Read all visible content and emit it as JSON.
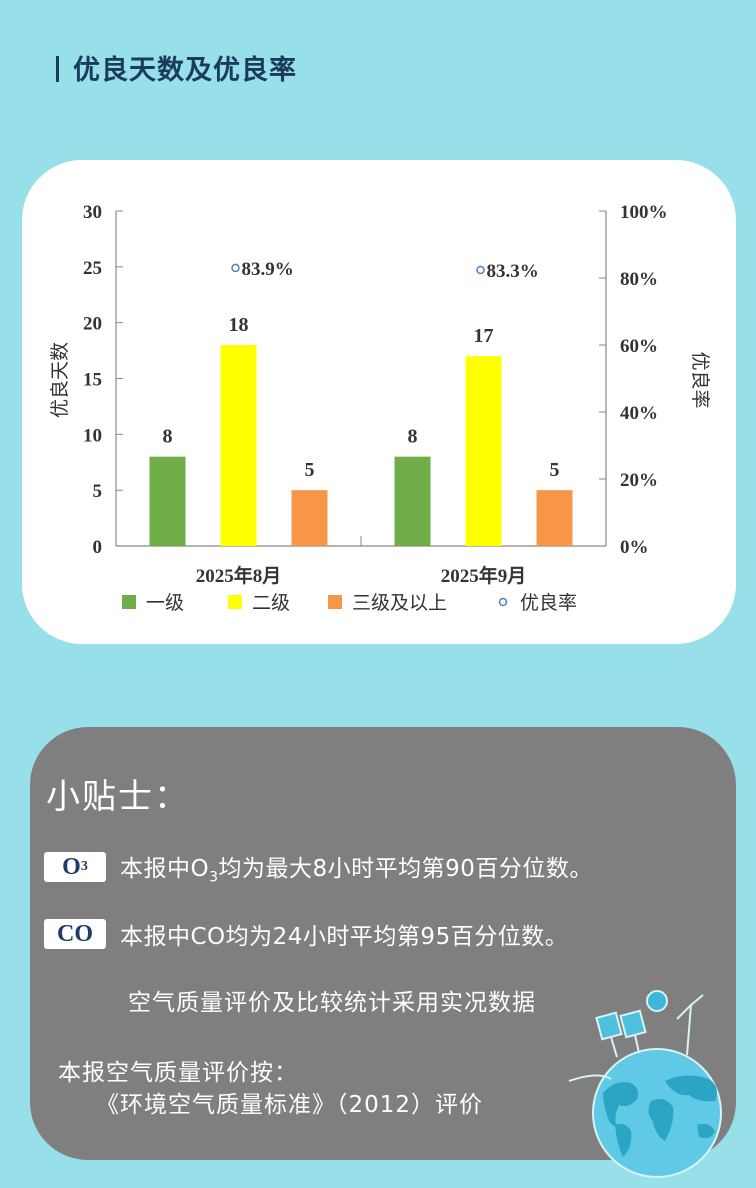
{
  "section": {
    "title": "优良天数及优良率"
  },
  "chart_data": {
    "type": "bar",
    "title": "优良天数及优良率",
    "categories": [
      "2025年8月",
      "2025年9月"
    ],
    "series": [
      {
        "name": "一级",
        "type": "bar",
        "axis": "left",
        "color": "#70ad47",
        "values": [
          8,
          8
        ]
      },
      {
        "name": "二级",
        "type": "bar",
        "axis": "left",
        "color": "#ffff00",
        "values": [
          18,
          17
        ]
      },
      {
        "name": "三级及以上",
        "type": "bar",
        "axis": "left",
        "color": "#f79646",
        "values": [
          5,
          5
        ]
      },
      {
        "name": "优良率",
        "type": "scatter",
        "axis": "right",
        "color": "#4f81bd",
        "values": [
          83.9,
          83.3
        ],
        "labels": [
          "83.9%",
          "83.3%"
        ]
      }
    ],
    "ylabel": "优良天数",
    "y2label": "优良率",
    "ylim": [
      0,
      30
    ],
    "yticks": [
      "0",
      "5",
      "10",
      "15",
      "20",
      "25",
      "30"
    ],
    "y2lim": [
      0,
      100
    ],
    "y2ticks": [
      "0%",
      "20%",
      "40%",
      "60%",
      "80%",
      "100%"
    ],
    "legend_position": "bottom",
    "grid": false
  },
  "legend": [
    {
      "label": "一级",
      "color": "#70ad47",
      "marker": "square"
    },
    {
      "label": "二级",
      "color": "#ffff00",
      "marker": "square"
    },
    {
      "label": "三级及以上",
      "color": "#f79646",
      "marker": "square"
    },
    {
      "label": "优良率",
      "color": "#4f81bd",
      "marker": "circle"
    }
  ],
  "tips": {
    "title": "小贴士：",
    "o3_badge": "O",
    "o3_badge_sub": "3",
    "o3_text_a": "本报中O",
    "o3_text_sub": "3",
    "o3_text_b": "均为最大8小时平均第90百分位数。",
    "co_badge": "CO",
    "co_text": "本报中CO均为24小时平均第95百分位数。",
    "note_realtime": "空气质量评价及比较统计采用实况数据",
    "note_standard_line1": "本报空气质量评价按：",
    "note_standard_line2": "《环境空气质量标准》（2012）评价"
  }
}
